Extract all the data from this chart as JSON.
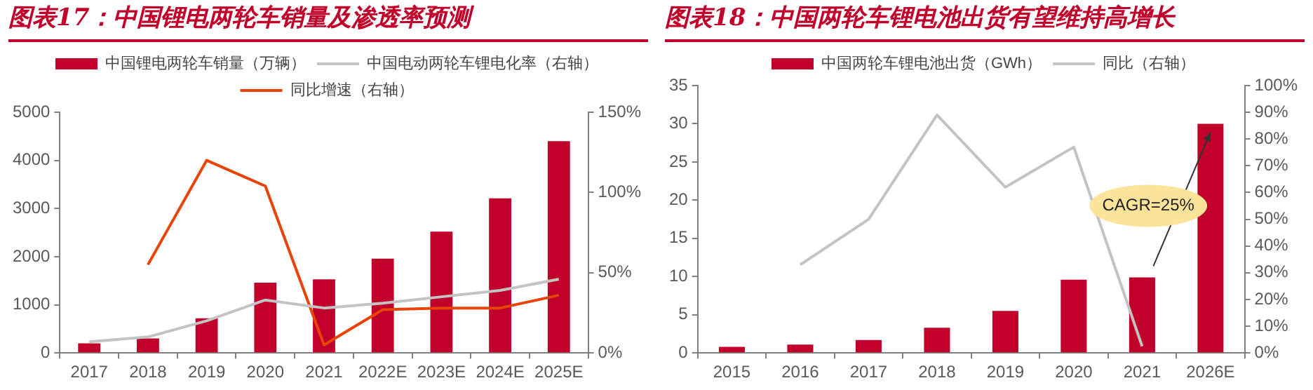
{
  "chart_data": [
    {
      "type": "bar",
      "title": "图表17：中国锂电两轮车销量及渗透率预测",
      "categories": [
        "2017",
        "2018",
        "2019",
        "2020",
        "2021",
        "2022E",
        "2023E",
        "2024E",
        "2025E"
      ],
      "series": [
        {
          "name": "中国锂电两轮车销量（万辆）",
          "color": "#c0002a",
          "values": [
            200,
            300,
            720,
            1460,
            1530,
            1960,
            2520,
            3210,
            4400
          ]
        },
        {
          "name": "中国电动两轮车锂电化率（右轴）",
          "type": "line",
          "axis": "y2",
          "color": "#c3c3c3",
          "values": [
            7,
            10,
            20,
            33,
            28,
            31,
            35,
            39,
            46
          ]
        },
        {
          "name": "同比增速（右轴）",
          "type": "line",
          "axis": "y2",
          "color": "#e8440a",
          "values": [
            null,
            55,
            120,
            104,
            5,
            27,
            28,
            28,
            36
          ]
        }
      ],
      "ylim": [
        0,
        5000
      ],
      "yticks": [
        0,
        1000,
        2000,
        3000,
        4000,
        5000
      ],
      "y2lim": [
        0,
        150
      ],
      "y2ticks": [
        {
          "value": 0,
          "label": "0%"
        },
        {
          "value": 50,
          "label": "50%"
        },
        {
          "value": 100,
          "label": "100%"
        },
        {
          "value": 150,
          "label": "150%"
        }
      ],
      "legend": "top"
    },
    {
      "type": "bar",
      "title": "图表18：中国两轮车锂电池出货有望维持高增长",
      "categories": [
        "2015",
        "2016",
        "2017",
        "2018",
        "2019",
        "2020",
        "2021",
        "2026E"
      ],
      "series": [
        {
          "name": "中国两轮车锂电池出货（GWh）",
          "color": "#c0002a",
          "values": [
            0.8,
            1.1,
            1.7,
            3.3,
            5.5,
            9.6,
            9.9,
            30
          ]
        },
        {
          "name": "同比（右轴）",
          "type": "line",
          "axis": "y2",
          "color": "#c3c3c3",
          "values": [
            null,
            33,
            50,
            89,
            62,
            77,
            2.5,
            null
          ]
        }
      ],
      "ylim": [
        0,
        35
      ],
      "yticks": [
        0,
        5,
        10,
        15,
        20,
        25,
        30,
        35
      ],
      "y2lim": [
        0,
        100
      ],
      "y2ticks": [
        {
          "value": 0,
          "label": "0%"
        },
        {
          "value": 10,
          "label": "10%"
        },
        {
          "value": 20,
          "label": "20%"
        },
        {
          "value": 30,
          "label": "30%"
        },
        {
          "value": 40,
          "label": "40%"
        },
        {
          "value": 50,
          "label": "50%"
        },
        {
          "value": 60,
          "label": "60%"
        },
        {
          "value": 70,
          "label": "70%"
        },
        {
          "value": 80,
          "label": "80%"
        },
        {
          "value": 90,
          "label": "90%"
        },
        {
          "value": 100,
          "label": "100%"
        }
      ],
      "legend": "top",
      "annotations": [
        "CAGR=25%"
      ]
    }
  ]
}
